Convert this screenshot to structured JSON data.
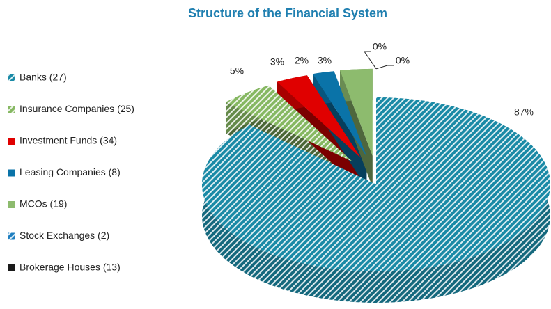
{
  "chart_data": {
    "type": "pie",
    "title": "Structure of the Financial System",
    "categories": [
      "Banks (27)",
      "Insurance Companies (25)",
      "Investment  Funds (34)",
      "Leasing Companies (8)",
      "MCOs (19)",
      "Stock Exchanges (2)",
      "Brokerage Houses (13)"
    ],
    "values": [
      87,
      5,
      3,
      2,
      3,
      0,
      0
    ],
    "value_labels": [
      "87%",
      "5%",
      "3%",
      "2%",
      "3%",
      "0%",
      "0%"
    ],
    "colors": [
      "#1a8aa6",
      "#86b862",
      "#e00000",
      "#0a73a8",
      "#8dbb6e",
      "#1f7fc0",
      "#1a1a1a"
    ],
    "hatched": [
      true,
      true,
      false,
      false,
      false,
      true,
      false
    ],
    "legend": "left"
  }
}
